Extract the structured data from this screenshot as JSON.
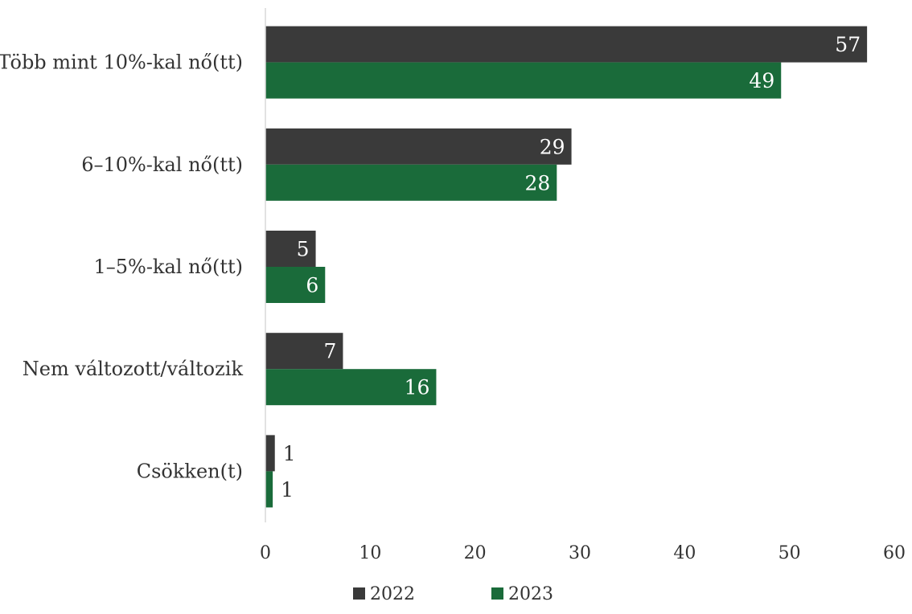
{
  "chart_data": {
    "type": "bar",
    "orientation": "horizontal",
    "title": "",
    "xlabel": "",
    "ylabel": "",
    "categories": [
      "Több mint 10%-kal nő(tt)",
      "6–10%-kal nő(tt)",
      "1–5%-kal nő(tt)",
      "Nem változott/változik",
      "Csökken(t)"
    ],
    "series": [
      {
        "name": "2022",
        "color": "#3a3a3a",
        "values": [
          57.4,
          29.2,
          4.8,
          7.4,
          0.9
        ],
        "labels": [
          "57",
          "29",
          "5",
          "7",
          "1"
        ]
      },
      {
        "name": "2023",
        "color": "#1a6b3a",
        "values": [
          49.2,
          27.8,
          5.7,
          16.3,
          0.7
        ],
        "labels": [
          "49",
          "28",
          "6",
          "16",
          "1"
        ]
      }
    ],
    "xlim": [
      0,
      60
    ],
    "xticks": [
      "0",
      "10",
      "20",
      "30",
      "40",
      "50",
      "60"
    ],
    "grid": false,
    "legend_position": "bottom"
  }
}
